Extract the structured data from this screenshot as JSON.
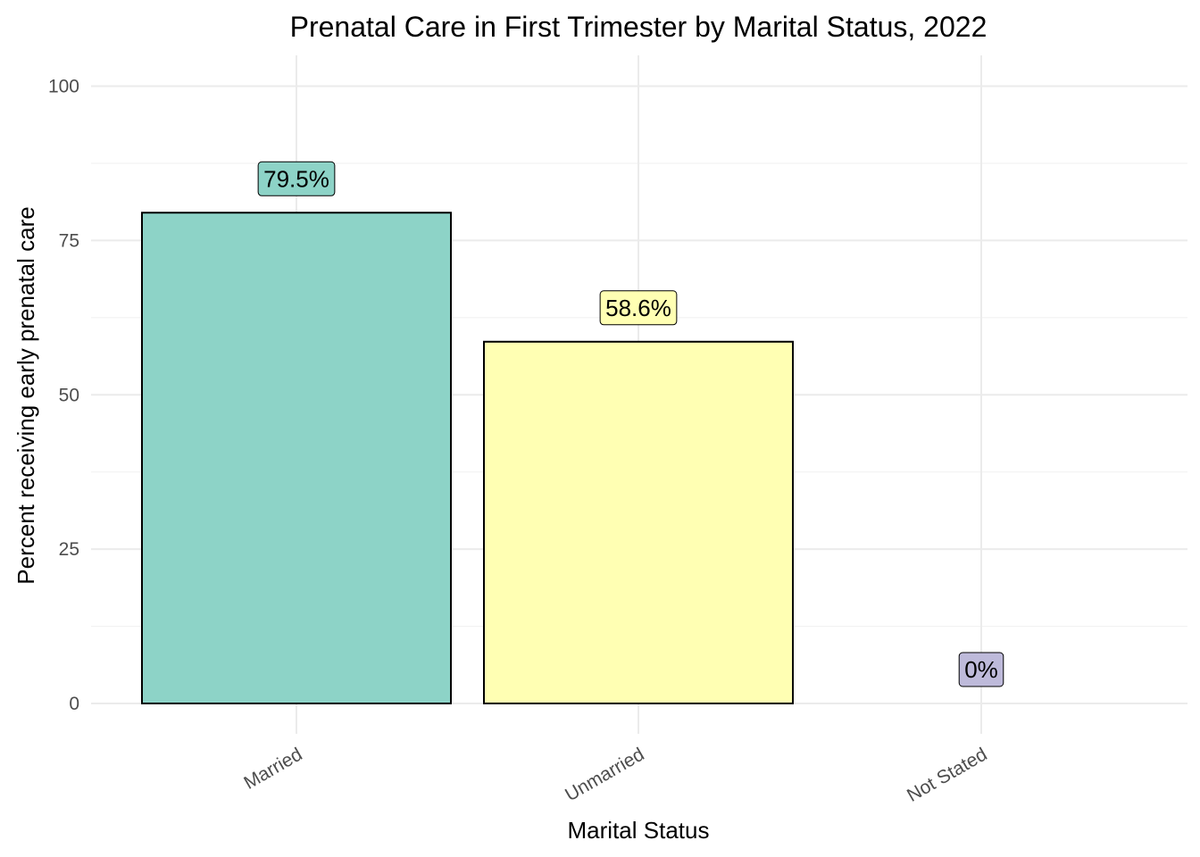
{
  "chart_data": {
    "type": "bar",
    "title": "Prenatal Care in First Trimester by Marital Status, 2022",
    "xlabel": "Marital Status",
    "ylabel": "Percent receiving early prenatal care",
    "categories": [
      "Married",
      "Unmarried",
      "Not Stated"
    ],
    "values": [
      79.5,
      58.6,
      0
    ],
    "data_labels": [
      "79.5%",
      "58.6%",
      "0%"
    ],
    "colors": [
      "#8DD3C7",
      "#FFFFB3",
      "#BEBADA"
    ],
    "ylim": [
      0,
      100
    ],
    "yticks": [
      0,
      25,
      50,
      75,
      100
    ],
    "ytick_labels": [
      "0",
      "25",
      "50",
      "75",
      "100"
    ],
    "grid": true,
    "legend": "none"
  }
}
